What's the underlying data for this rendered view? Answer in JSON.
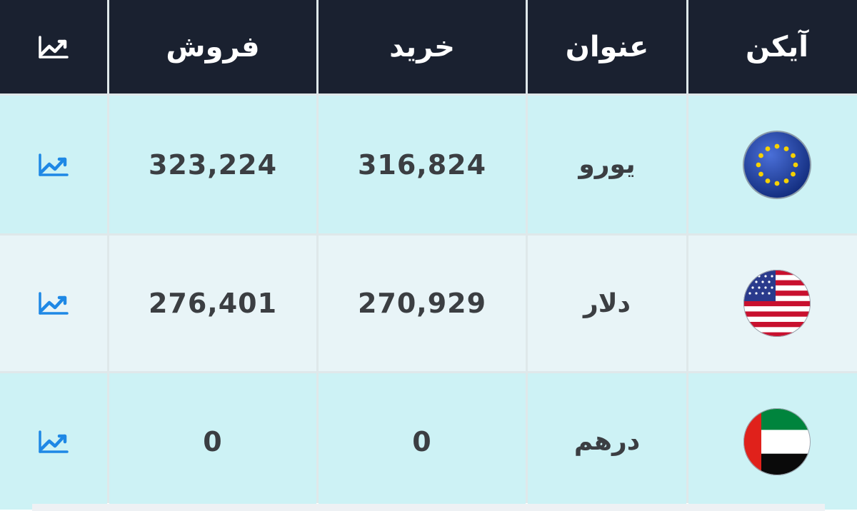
{
  "table": {
    "headers": {
      "chart": "",
      "sell": "فروش",
      "buy": "خرید",
      "title": "عنوان",
      "icon": "آیکن"
    },
    "rows": [
      {
        "title": "یورو",
        "buy": "316,824",
        "sell": "323,224",
        "flag_icon": "eu-flag-icon",
        "chart_icon": "trending-chart-icon"
      },
      {
        "title": "دلار",
        "buy": "270,929",
        "sell": "276,401",
        "flag_icon": "us-flag-icon",
        "chart_icon": "trending-chart-icon"
      },
      {
        "title": "درهم",
        "buy": "0",
        "sell": "0",
        "flag_icon": "uae-flag-icon",
        "chart_icon": "trending-chart-icon"
      }
    ]
  },
  "colors": {
    "header_bg": "#1a2130",
    "row_light_cyan": "#cdf2f5",
    "row_light_blue": "#e8f4f7",
    "chart_icon_blue": "#1e88e5"
  }
}
